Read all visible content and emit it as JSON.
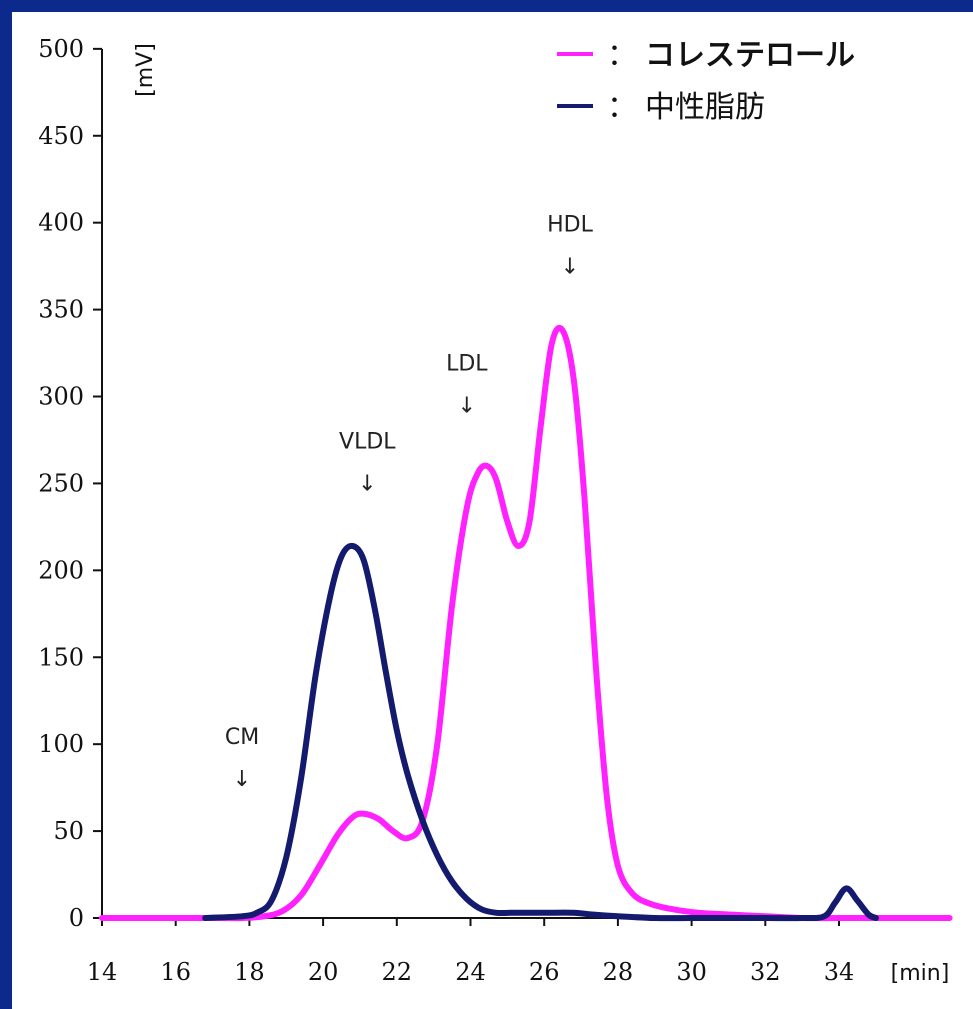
{
  "chart_data": {
    "type": "line",
    "xlabel": "[min]",
    "ylabel": "[mV]",
    "xlim": [
      14,
      37
    ],
    "ylim": [
      0,
      500
    ],
    "x_ticks": [
      14,
      16,
      18,
      20,
      22,
      24,
      26,
      28,
      30,
      32,
      34
    ],
    "y_ticks": [
      0,
      50,
      100,
      150,
      200,
      250,
      300,
      350,
      400,
      450,
      500
    ],
    "series": [
      {
        "name": "コレステロール",
        "color": "#ff22ff",
        "x": [
          14,
          17,
          17.8,
          18.4,
          18.9,
          19.4,
          19.9,
          20.4,
          20.8,
          21.1,
          21.5,
          21.9,
          22.3,
          22.7,
          23.1,
          23.5,
          23.9,
          24.2,
          24.45,
          24.7,
          25.0,
          25.3,
          25.6,
          25.9,
          26.2,
          26.5,
          26.8,
          27.1,
          27.4,
          27.7,
          28.0,
          28.4,
          28.9,
          29.5,
          30.2,
          31.0,
          32.0,
          33.0,
          34.0,
          35.0,
          37.0
        ],
        "values": [
          0,
          0,
          0,
          1,
          4,
          13,
          30,
          48,
          58,
          60,
          57,
          50,
          46,
          56,
          100,
          180,
          236,
          256,
          260,
          252,
          228,
          214,
          228,
          282,
          330,
          338,
          310,
          240,
          145,
          70,
          30,
          14,
          8,
          5,
          3,
          2,
          1,
          0,
          0,
          0,
          0
        ]
      },
      {
        "name": "中性脂肪",
        "color": "#141a6e",
        "x": [
          16.8,
          17.8,
          18.2,
          18.6,
          19.0,
          19.4,
          19.8,
          20.2,
          20.5,
          20.8,
          21.1,
          21.4,
          21.7,
          22.0,
          22.3,
          22.7,
          23.1,
          23.5,
          23.9,
          24.3,
          24.7,
          25.1,
          26.0,
          26.8,
          27.3,
          28.0,
          29.0,
          30.0,
          31.0,
          32.0,
          33.0,
          33.6,
          33.9,
          34.2,
          34.5,
          34.8,
          35.0
        ],
        "values": [
          0,
          1,
          3,
          10,
          35,
          80,
          140,
          186,
          208,
          214,
          206,
          178,
          142,
          108,
          82,
          56,
          36,
          21,
          11,
          5,
          3,
          3,
          3,
          3,
          2,
          1,
          0,
          0,
          0,
          0,
          0,
          1,
          9,
          17,
          10,
          2,
          0
        ]
      }
    ],
    "annotations": [
      {
        "text": "CM",
        "arrow": "↓",
        "x": 17.8,
        "y": 100
      },
      {
        "text": "VLDL",
        "arrow": "↓",
        "x": 21.2,
        "y": 270
      },
      {
        "text": "LDL",
        "arrow": "↓",
        "x": 23.9,
        "y": 315
      },
      {
        "text": "HDL",
        "arrow": "↓",
        "x": 26.7,
        "y": 395
      }
    ],
    "legend": {
      "position": "top-right",
      "separator": "：",
      "entries": [
        "コレステロール",
        "中性脂肪"
      ]
    }
  }
}
